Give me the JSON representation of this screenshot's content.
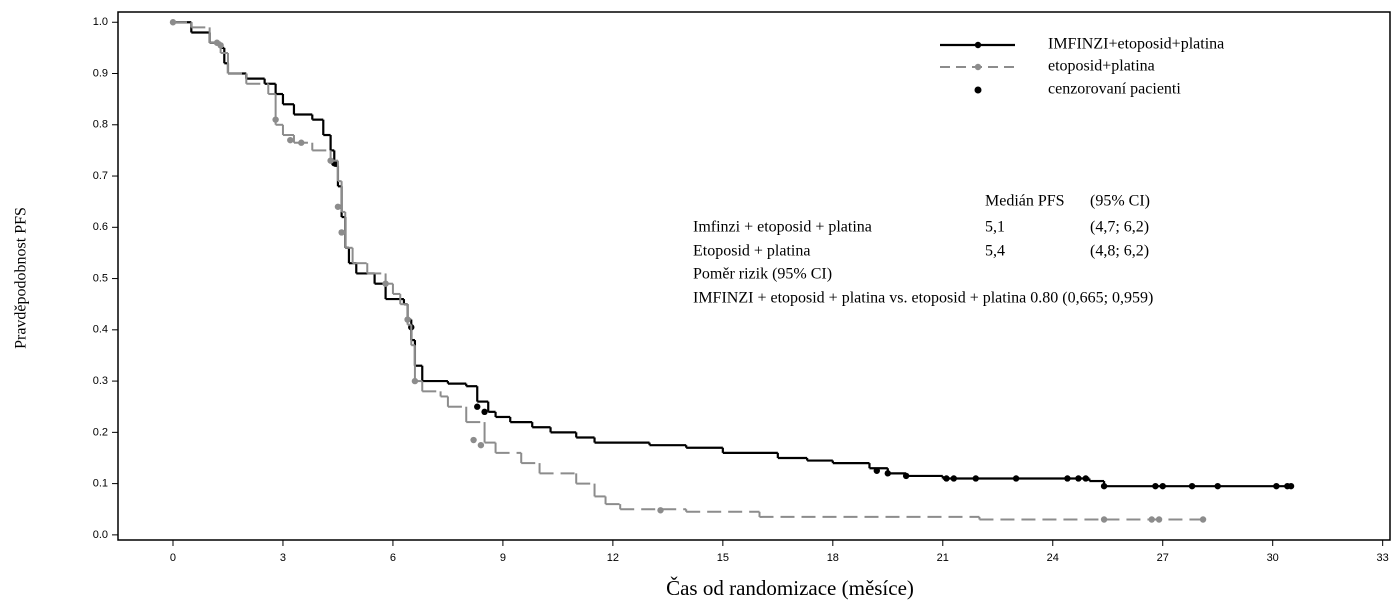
{
  "chart_data": {
    "type": "kaplan-meier",
    "x_label": "Čas od randomizace (měsíce)",
    "y_label": "Pravděpodobnost PFS",
    "xlim": [
      -1.5,
      33.2
    ],
    "ylim": [
      -0.01,
      1.02
    ],
    "xticks": [
      0,
      3,
      6,
      9,
      12,
      15,
      18,
      21,
      24,
      27,
      30,
      33
    ],
    "yticks": [
      {
        "value": 0.0,
        "label": "0.0"
      },
      {
        "value": 0.1,
        "label": "0.1"
      },
      {
        "value": 0.2,
        "label": "0.2"
      },
      {
        "value": 0.3,
        "label": "0.3"
      },
      {
        "value": 0.4,
        "label": "0.4"
      },
      {
        "value": 0.5,
        "label": "0.5"
      },
      {
        "value": 0.6,
        "label": "0.6"
      },
      {
        "value": 0.7,
        "label": "0.7"
      },
      {
        "value": 0.8,
        "label": "0.8"
      },
      {
        "value": 0.9,
        "label": "0.9"
      },
      {
        "value": 1.0,
        "label": "1.0"
      }
    ],
    "series": [
      {
        "name": "IMFINZI+etoposid+platina",
        "color": "#000000",
        "dashed": false,
        "x": [
          0,
          0.5,
          1,
          1.3,
          1.4,
          1.5,
          2,
          2.5,
          2.8,
          3,
          3.3,
          3.8,
          4.1,
          4.3,
          4.4,
          4.5,
          4.6,
          4.7,
          4.8,
          5,
          5.5,
          5.8,
          6.3,
          6.4,
          6.5,
          6.6,
          6.8,
          7.5,
          8,
          8.3,
          8.6,
          8.8,
          9.2,
          9.8,
          10.3,
          11,
          11.5,
          13,
          14,
          15,
          16.5,
          17.3,
          18,
          19,
          19.5,
          20,
          21,
          25,
          25.4,
          30.5
        ],
        "values": [
          1.0,
          0.98,
          0.96,
          0.95,
          0.92,
          0.9,
          0.89,
          0.88,
          0.86,
          0.84,
          0.82,
          0.81,
          0.78,
          0.75,
          0.72,
          0.68,
          0.62,
          0.56,
          0.53,
          0.51,
          0.49,
          0.46,
          0.45,
          0.42,
          0.38,
          0.33,
          0.3,
          0.295,
          0.29,
          0.26,
          0.24,
          0.23,
          0.22,
          0.21,
          0.2,
          0.19,
          0.18,
          0.175,
          0.17,
          0.16,
          0.15,
          0.145,
          0.14,
          0.13,
          0.12,
          0.115,
          0.11,
          0.105,
          0.095,
          0.095
        ],
        "censored_x": [
          4.4,
          6.5,
          8.3,
          8.5,
          19.2,
          19.5,
          20,
          21.1,
          21.3,
          21.9,
          23,
          24.4,
          24.7,
          24.9,
          25.4,
          26.8,
          27,
          27.8,
          28.5,
          30.1,
          30.4,
          30.5
        ],
        "censored_y": [
          0.725,
          0.405,
          0.25,
          0.24,
          0.125,
          0.12,
          0.115,
          0.11,
          0.11,
          0.11,
          0.11,
          0.11,
          0.11,
          0.11,
          0.095,
          0.095,
          0.095,
          0.095,
          0.095,
          0.095,
          0.095,
          0.095
        ]
      },
      {
        "name": "etoposid+platina",
        "color": "#8c8c8c",
        "dashed": true,
        "x": [
          0,
          0.5,
          1,
          1.3,
          1.5,
          2,
          2.6,
          2.8,
          3,
          3.3,
          3.8,
          4.3,
          4.5,
          4.6,
          4.7,
          4.9,
          5.3,
          5.8,
          6,
          6.2,
          6.4,
          6.5,
          6.6,
          6.8,
          7.3,
          7.5,
          8,
          8.5,
          8.8,
          9.5,
          10,
          11,
          11.5,
          11.8,
          12.2,
          14,
          16,
          22,
          28.1
        ],
        "values": [
          1.0,
          0.99,
          0.96,
          0.94,
          0.9,
          0.88,
          0.86,
          0.8,
          0.78,
          0.765,
          0.75,
          0.73,
          0.69,
          0.63,
          0.56,
          0.53,
          0.51,
          0.49,
          0.47,
          0.45,
          0.41,
          0.37,
          0.3,
          0.28,
          0.27,
          0.25,
          0.22,
          0.18,
          0.16,
          0.14,
          0.12,
          0.1,
          0.075,
          0.06,
          0.05,
          0.045,
          0.035,
          0.03,
          0.03
        ],
        "censored_x": [
          0,
          1.2,
          1.3,
          2.8,
          3.2,
          3.5,
          4.3,
          4.5,
          4.6,
          5.8,
          6.4,
          6.6,
          8.2,
          8.4,
          13.3,
          25.4,
          26.7,
          26.9,
          28.1
        ],
        "censored_y": [
          1.0,
          0.96,
          0.955,
          0.81,
          0.77,
          0.765,
          0.73,
          0.64,
          0.59,
          0.49,
          0.42,
          0.3,
          0.185,
          0.175,
          0.048,
          0.03,
          0.03,
          0.03,
          0.03
        ]
      }
    ],
    "censor_legend": "cenzorovaní pacienti",
    "annotation": {
      "header": [
        "Medián PFS",
        "(95% CI)"
      ],
      "rows": [
        [
          "Imfinzi + etoposid + platina",
          "5,1",
          "(4,7; 6,2)"
        ],
        [
          "Etoposid + platina",
          "5,4",
          "(4,8; 6,2)"
        ]
      ],
      "hr_title": "Poměr rizik (95% CI)",
      "hr_text": "IMFINZI + etoposid + platina vs. etoposid + platina 0.80 (0,665; 0,959)"
    }
  }
}
